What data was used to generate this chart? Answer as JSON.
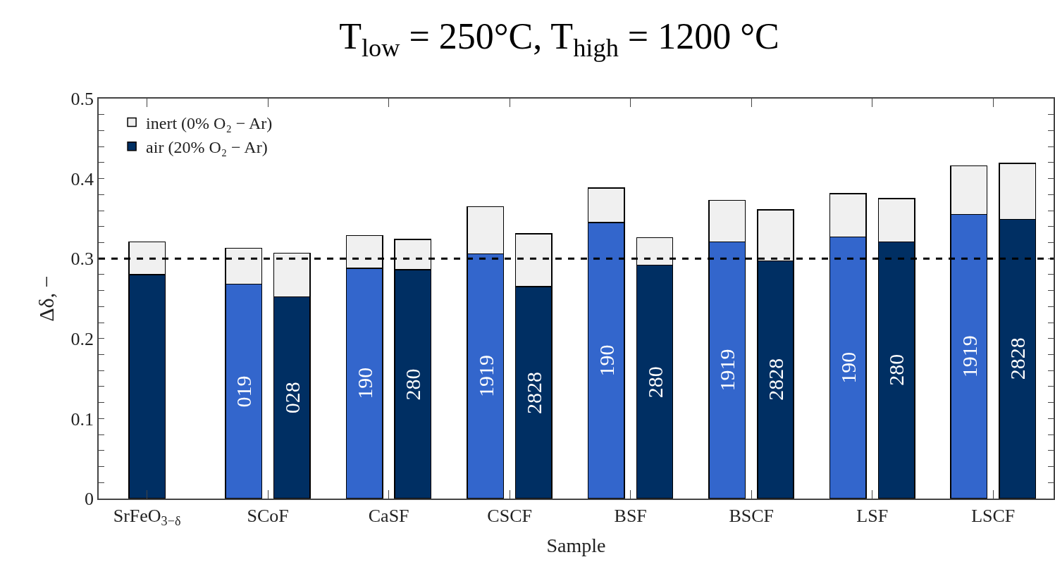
{
  "chart_data": {
    "type": "bar",
    "title": "T$_{low}$ = 250°C, T$_{high}$ = 1200 °C",
    "xlabel": "Sample",
    "ylabel": "Δδ, −",
    "stacked": true,
    "categories": [
      null,
      "SrFeO$_{3−δ}$",
      null,
      null,
      "SCoF",
      null,
      null,
      "CaSF",
      null,
      null,
      "CSCF",
      null,
      null,
      "BSF",
      null,
      null,
      "BSCF",
      null,
      null,
      "LSF",
      null,
      null,
      "LSCF",
      null
    ],
    "ylim": [
      0,
      0.5
    ],
    "yticks": [
      0,
      {
        "value": 0.02,
        "label": null
      },
      {
        "value": 0.04,
        "label": null
      },
      {
        "value": 0.06,
        "label": null
      },
      {
        "value": 0.08,
        "label": null
      },
      0.1,
      {
        "value": 0.12,
        "label": null
      },
      {
        "value": 0.14,
        "label": null
      },
      {
        "value": 0.16,
        "label": null
      },
      {
        "value": 0.18,
        "label": null
      },
      0.2,
      {
        "value": 0.22,
        "label": null
      },
      {
        "value": 0.24,
        "label": null
      },
      {
        "value": 0.26,
        "label": null
      },
      {
        "value": 0.28,
        "label": null
      },
      0.3,
      {
        "value": 0.32,
        "label": null
      },
      {
        "value": 0.34,
        "label": null
      },
      {
        "value": 0.36,
        "label": null
      },
      {
        "value": 0.38,
        "label": null
      },
      0.4,
      {
        "value": 0.42,
        "label": null
      },
      {
        "value": 0.44,
        "label": null
      },
      {
        "value": 0.46,
        "label": null
      },
      {
        "value": 0.48,
        "label": null
      },
      0.5
    ],
    "series": [
      {
        "name": "air (20% O₂ − Ar)",
        "color": "#002f63",
        "values": [
          null,
          0.28,
          null,
          0.268,
          null,
          0.252,
          0.288,
          null,
          0.286,
          0.306,
          null,
          0.265,
          0.345,
          null,
          0.292,
          0.321,
          null,
          0.297,
          0.327,
          null,
          0.321,
          0.355,
          null,
          0.349
        ],
        "colors": [
          null,
          "#002f63",
          null,
          "#3366cc",
          null,
          "#002f63",
          "#3366cc",
          null,
          "#002f63",
          "#3366cc",
          null,
          "#002f63",
          "#3366cc",
          null,
          "#002f63",
          "#3366cc",
          null,
          "#002f63",
          "#3366cc",
          null,
          "#002f63",
          "#3366cc",
          null,
          "#002f63"
        ]
      },
      {
        "name": "inert (0% O₂ − Ar)",
        "color": "#f0f0f0",
        "values": [
          null,
          0.041,
          null,
          0.045,
          null,
          0.055,
          0.041,
          null,
          0.038,
          0.059,
          null,
          0.066,
          0.043,
          null,
          0.034,
          0.052,
          null,
          0.064,
          0.054,
          null,
          0.054,
          0.061,
          null,
          0.07
        ]
      }
    ],
    "ref_lines": [
      {
        "axis": "y",
        "value": 0.3,
        "color": "#000000",
        "line_style": "dashed"
      }
    ],
    "annotations": [
      "019",
      "028",
      "190",
      "280",
      "1919",
      "2828",
      "190",
      "280",
      "1919",
      "2828",
      "190",
      "280",
      "1919",
      "2828"
    ],
    "legend": "top left"
  }
}
